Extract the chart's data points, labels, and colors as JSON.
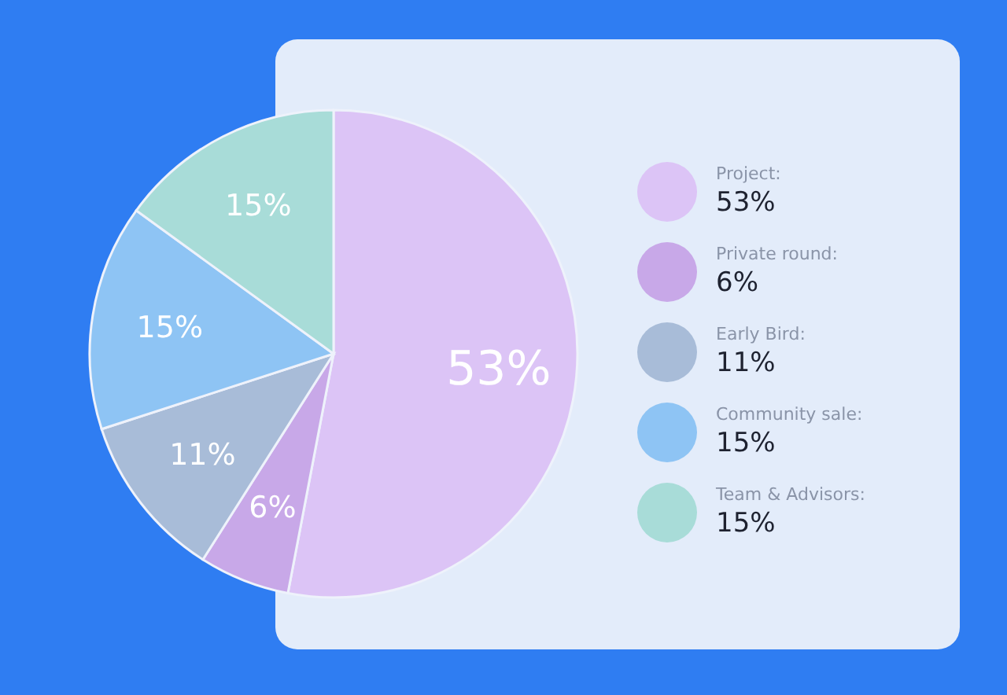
{
  "chart_data": {
    "type": "pie",
    "categories": [
      "Project",
      "Private round",
      "Early Bird",
      "Community sale",
      "Team & Advisors"
    ],
    "values": [
      53,
      6,
      11,
      15,
      15
    ],
    "value_labels": [
      "53%",
      "6%",
      "11%",
      "15%",
      "15%"
    ],
    "colors": [
      "#dcc4f6",
      "#c8a8e8",
      "#a8bcd8",
      "#8ec4f4",
      "#a8dcd8"
    ],
    "legend": "right"
  }
}
